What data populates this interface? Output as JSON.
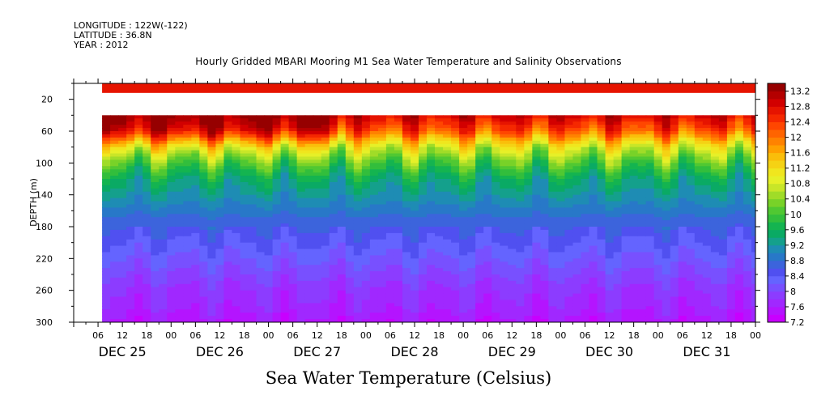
{
  "header": {
    "longitude": "LONGITUDE : 122W(-122)",
    "latitude": "LATITUDE : 36.8N",
    "year": "YEAR : 2012"
  },
  "chart_data": {
    "type": "heatmap",
    "title": "Hourly Gridded MBARI Mooring M1 Sea Water Temperature and Salinity Observations",
    "xlabel": "Sea Water Temperature (Celsius)",
    "ylabel": "DEPTH (m)",
    "x_range_hours": [
      -6,
      162
    ],
    "ylim": [
      300,
      0
    ],
    "y_ticks": [
      20,
      60,
      100,
      140,
      180,
      220,
      260,
      300
    ],
    "x_hour_ticks": [
      {
        "h": 0,
        "label": "06"
      },
      {
        "h": 6,
        "label": "12"
      },
      {
        "h": 12,
        "label": "18"
      },
      {
        "h": 18,
        "label": "00"
      },
      {
        "h": 24,
        "label": "06"
      },
      {
        "h": 30,
        "label": "12"
      },
      {
        "h": 36,
        "label": "18"
      },
      {
        "h": 42,
        "label": "00"
      },
      {
        "h": 48,
        "label": "06"
      },
      {
        "h": 54,
        "label": "12"
      },
      {
        "h": 60,
        "label": "18"
      },
      {
        "h": 66,
        "label": "00"
      },
      {
        "h": 72,
        "label": "06"
      },
      {
        "h": 78,
        "label": "12"
      },
      {
        "h": 84,
        "label": "18"
      },
      {
        "h": 90,
        "label": "00"
      },
      {
        "h": 96,
        "label": "06"
      },
      {
        "h": 102,
        "label": "12"
      },
      {
        "h": 108,
        "label": "18"
      },
      {
        "h": 114,
        "label": "00"
      },
      {
        "h": 120,
        "label": "06"
      },
      {
        "h": 126,
        "label": "12"
      },
      {
        "h": 132,
        "label": "18"
      },
      {
        "h": 138,
        "label": "00"
      },
      {
        "h": 144,
        "label": "06"
      },
      {
        "h": 150,
        "label": "12"
      },
      {
        "h": 156,
        "label": "18"
      },
      {
        "h": 162,
        "label": "00"
      }
    ],
    "day_labels": [
      {
        "h": 6,
        "label": "DEC 25"
      },
      {
        "h": 30,
        "label": "DEC 26"
      },
      {
        "h": 54,
        "label": "DEC 27"
      },
      {
        "h": 78,
        "label": "DEC 28"
      },
      {
        "h": 102,
        "label": "DEC 29"
      },
      {
        "h": 126,
        "label": "DEC 30"
      },
      {
        "h": 150,
        "label": "DEC 31"
      }
    ],
    "data_start_hour": 1,
    "surface_band_depth_m": [
      0,
      12
    ],
    "no_data_depth_m": [
      12,
      40
    ],
    "colorbar": {
      "min": 7.2,
      "max": 13.4,
      "step": 0.2,
      "tick_labels": [
        "7.2",
        "7.6",
        "8",
        "8.4",
        "8.8",
        "9.2",
        "9.6",
        "10",
        "10.4",
        "10.8",
        "11.2",
        "11.6",
        "12",
        "12.4",
        "12.8",
        "13.2"
      ],
      "colors": [
        "#c800ff",
        "#b414ff",
        "#a028ff",
        "#8c3cff",
        "#7850ff",
        "#6464ff",
        "#5050f0",
        "#3c64dc",
        "#2878c8",
        "#1e8cb4",
        "#14a08c",
        "#0aaa64",
        "#14b450",
        "#32be3c",
        "#50c832",
        "#78d228",
        "#a0dc28",
        "#c8e628",
        "#e6f028",
        "#f0e61e",
        "#f5d214",
        "#fabe0a",
        "#ffa000",
        "#ff8200",
        "#ff6400",
        "#ff4600",
        "#f52800",
        "#e61400",
        "#d20000",
        "#b40000",
        "#960000"
      ]
    },
    "series": [
      {
        "depth": 20,
        "temp": 12.6
      },
      {
        "depth": 40,
        "temp": 12.9
      },
      {
        "depth": 60,
        "temp": 12.2
      },
      {
        "depth": 80,
        "temp": 10.9
      },
      {
        "depth": 100,
        "temp": 10.1
      },
      {
        "depth": 120,
        "temp": 9.5
      },
      {
        "depth": 140,
        "temp": 9.2
      },
      {
        "depth": 160,
        "temp": 8.9
      },
      {
        "depth": 180,
        "temp": 8.6
      },
      {
        "depth": 200,
        "temp": 8.4
      },
      {
        "depth": 220,
        "temp": 8.2
      },
      {
        "depth": 240,
        "temp": 8.0
      },
      {
        "depth": 260,
        "temp": 7.8
      },
      {
        "depth": 280,
        "temp": 7.7
      },
      {
        "depth": 300,
        "temp": 7.5
      }
    ]
  }
}
